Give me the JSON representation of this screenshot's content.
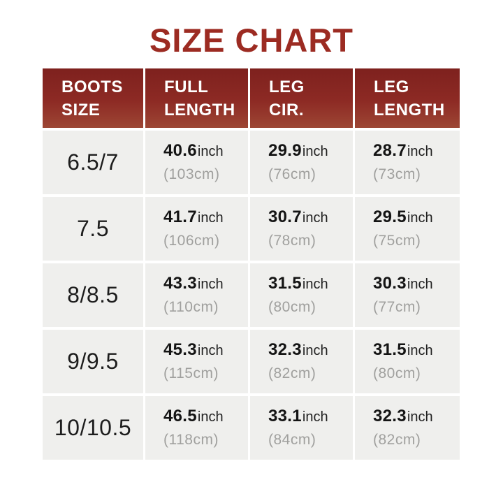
{
  "page": {
    "title": "SIZE CHART"
  },
  "colors": {
    "title_red": "#9c2b22",
    "header_red_top": "#7e211e",
    "header_red_bottom": "#9d4634",
    "cell_gray": "#efefed",
    "cm_text_gray": "#a0a09e",
    "value_black": "#141414"
  },
  "table": {
    "unit_label": "inch",
    "headers": [
      {
        "line1": "BOOTS",
        "line2": "SIZE"
      },
      {
        "line1": "FULL",
        "line2": "LENGTH"
      },
      {
        "line1": "LEG",
        "line2": "CIR."
      },
      {
        "line1": "LEG",
        "line2": "LENGTH"
      }
    ],
    "rows": [
      {
        "size": "6.5/7",
        "cols": [
          {
            "inch": "40.6",
            "cm": "(103cm)"
          },
          {
            "inch": "29.9",
            "cm": "(76cm)"
          },
          {
            "inch": "28.7",
            "cm": "(73cm)"
          }
        ]
      },
      {
        "size": "7.5",
        "cols": [
          {
            "inch": "41.7",
            "cm": "(106cm)"
          },
          {
            "inch": "30.7",
            "cm": "(78cm)"
          },
          {
            "inch": "29.5",
            "cm": "(75cm)"
          }
        ]
      },
      {
        "size": "8/8.5",
        "cols": [
          {
            "inch": "43.3",
            "cm": "(110cm)"
          },
          {
            "inch": "31.5",
            "cm": "(80cm)"
          },
          {
            "inch": "30.3",
            "cm": "(77cm)"
          }
        ]
      },
      {
        "size": "9/9.5",
        "cols": [
          {
            "inch": "45.3",
            "cm": "(115cm)"
          },
          {
            "inch": "32.3",
            "cm": "(82cm)"
          },
          {
            "inch": "31.5",
            "cm": "(80cm)"
          }
        ]
      },
      {
        "size": "10/10.5",
        "cols": [
          {
            "inch": "46.5",
            "cm": "(118cm)"
          },
          {
            "inch": "33.1",
            "cm": "(84cm)"
          },
          {
            "inch": "32.3",
            "cm": "(82cm)"
          }
        ]
      }
    ]
  },
  "chart_data": {
    "type": "table",
    "title": "SIZE CHART",
    "columns": [
      "BOOTS SIZE",
      "FULL LENGTH",
      "LEG CIR.",
      "LEG LENGTH"
    ],
    "rows": [
      [
        "6.5/7",
        "40.6 inch (103cm)",
        "29.9 inch (76cm)",
        "28.7 inch (73cm)"
      ],
      [
        "7.5",
        "41.7 inch (106cm)",
        "30.7 inch (78cm)",
        "29.5 inch (75cm)"
      ],
      [
        "8/8.5",
        "43.3 inch (110cm)",
        "31.5 inch (80cm)",
        "30.3 inch (77cm)"
      ],
      [
        "9/9.5",
        "45.3 inch (115cm)",
        "32.3 inch (82cm)",
        "31.5 inch (80cm)"
      ],
      [
        "10/10.5",
        "46.5 inch (118cm)",
        "33.1 inch (84cm)",
        "32.3 inch (82cm)"
      ]
    ]
  }
}
